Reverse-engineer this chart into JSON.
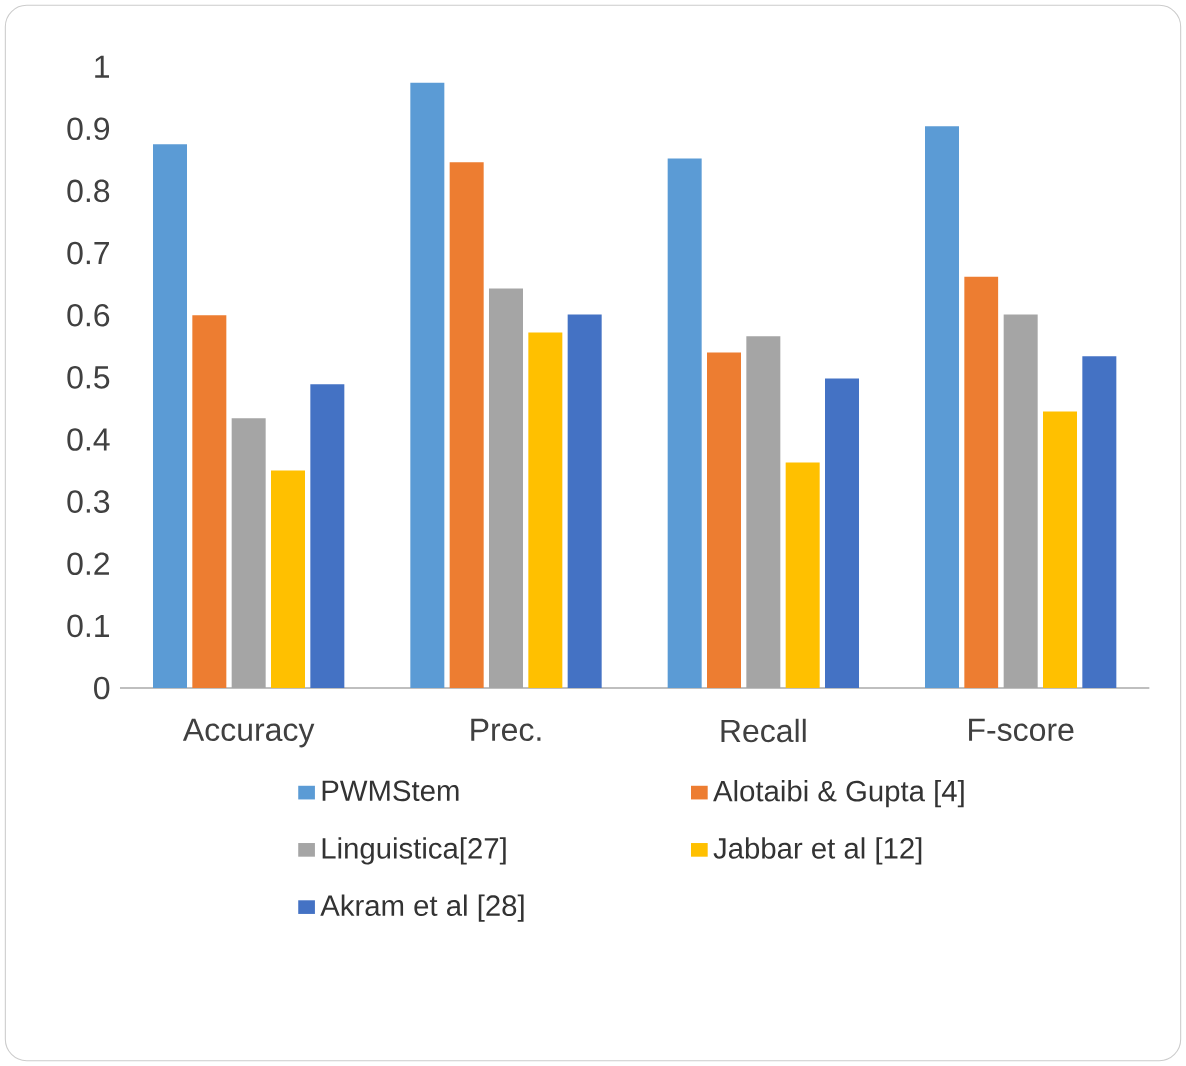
{
  "chart_data": {
    "type": "bar",
    "categories": [
      "Accuracy",
      "Prec.",
      "Recall",
      "F-score"
    ],
    "series": [
      {
        "name": "PWMStem",
        "color": "#5b9bd5",
        "values": [
          0.875,
          0.974,
          0.852,
          0.904
        ]
      },
      {
        "name": "Alotaibi & Gupta [4]",
        "color": "#ed7d31",
        "values": [
          0.6,
          0.846,
          0.54,
          0.662
        ]
      },
      {
        "name": "Linguistica[27]",
        "color": "#a5a5a5",
        "values": [
          0.434,
          0.643,
          0.566,
          0.601
        ]
      },
      {
        "name": "Jabbar et al [12]",
        "color": "#ffc000",
        "values": [
          0.35,
          0.572,
          0.363,
          0.445
        ]
      },
      {
        "name": "Akram et al  [28]",
        "color": "#4472c4",
        "values": [
          0.489,
          0.601,
          0.498,
          0.534
        ]
      }
    ],
    "ylim": [
      0,
      1
    ],
    "yticks": [
      0,
      0.1,
      0.2,
      0.3,
      0.4,
      0.5,
      0.6,
      0.7,
      0.8,
      0.9,
      1
    ],
    "grid": false,
    "legend": "bottom"
  }
}
